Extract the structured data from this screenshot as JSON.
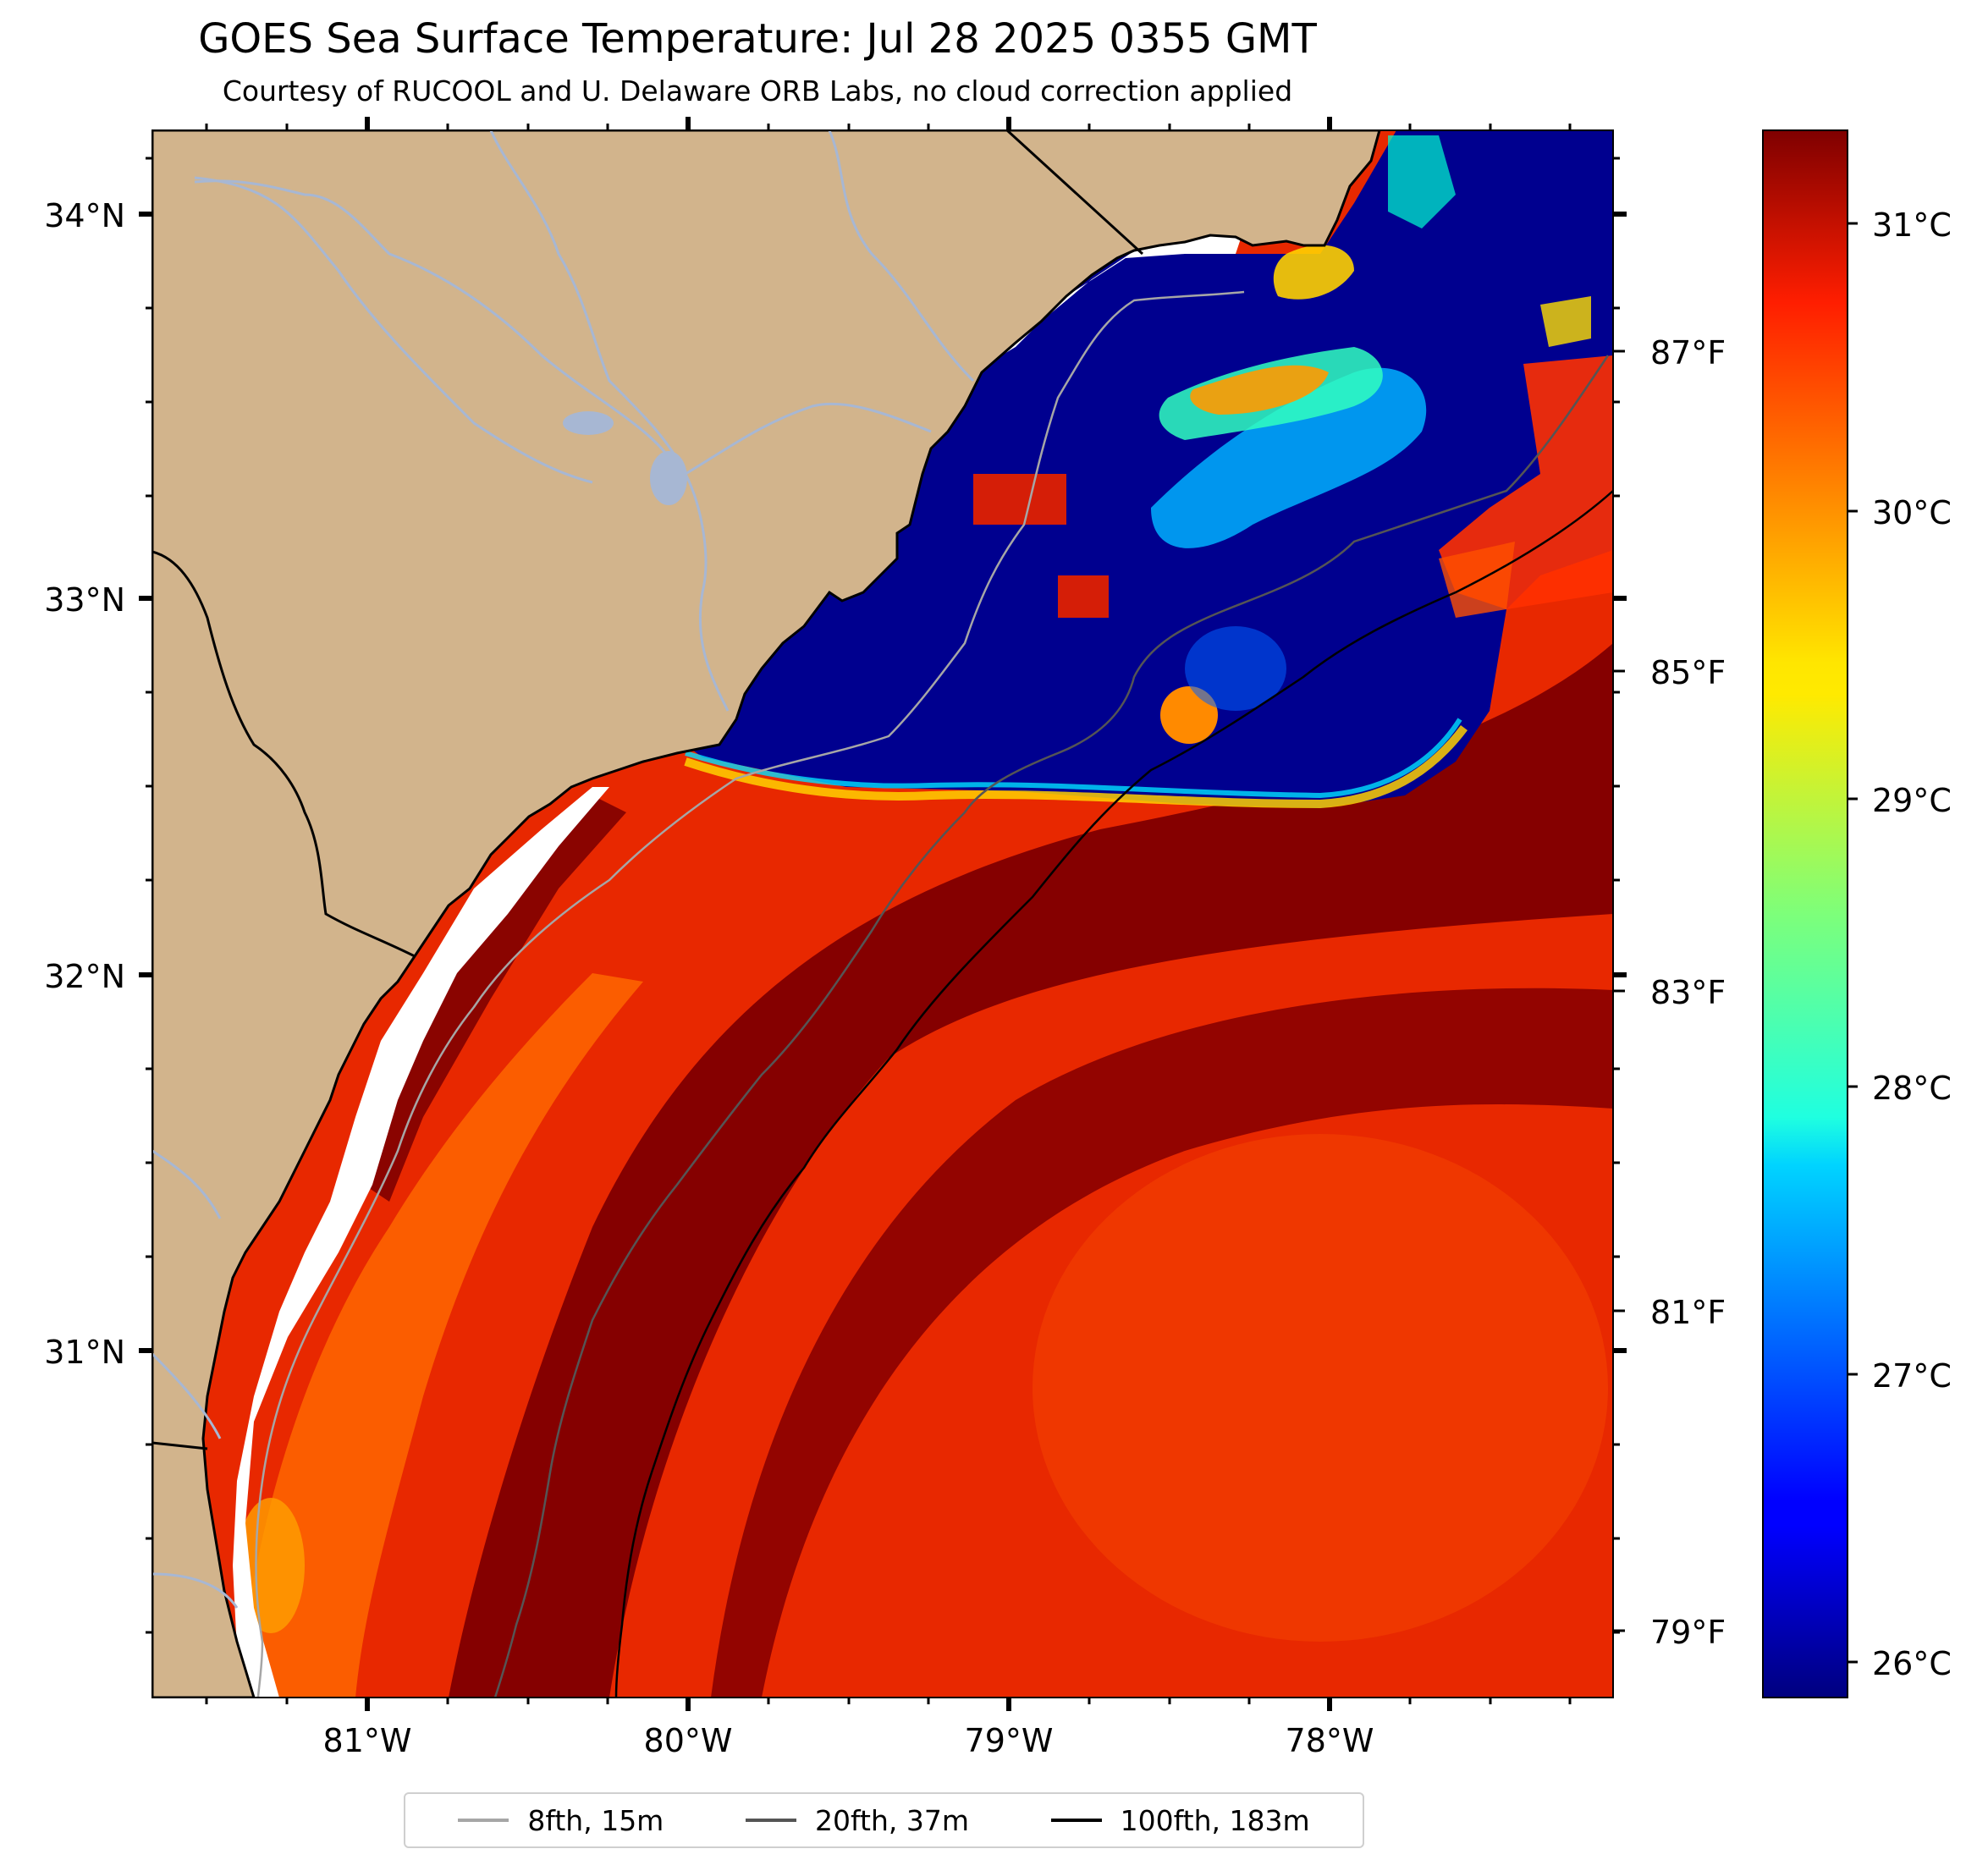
{
  "title": "GOES Sea Surface Temperature: Jul 28 2025 0355 GMT",
  "subtitle": "Courtesy of RUCOOL and U. Delaware ORB Labs, no cloud correction applied",
  "axes": {
    "lat_labels": [
      "34°N",
      "33°N",
      "32°N",
      "31°N"
    ],
    "lon_labels": [
      "81°W",
      "80°W",
      "79°W",
      "78°W"
    ],
    "fahrenheit_labels": [
      "87°F",
      "85°F",
      "83°F",
      "81°F",
      "79°F"
    ]
  },
  "colorbar": {
    "labels": [
      "31°C",
      "30°C",
      "29°C",
      "28°C",
      "27°C",
      "26°C"
    ],
    "range_c": [
      25.85,
      31.3
    ],
    "colormap": "jet"
  },
  "legend": [
    {
      "label": "8fth, 15m",
      "color": "#a6a6a6"
    },
    {
      "label": "20fth, 37m",
      "color": "#555555"
    },
    {
      "label": "100fth, 183m",
      "color": "#000000"
    }
  ],
  "colors": {
    "land": "#d2b48c",
    "river": "#a7b7d3",
    "no_data": "#ffffff"
  }
}
